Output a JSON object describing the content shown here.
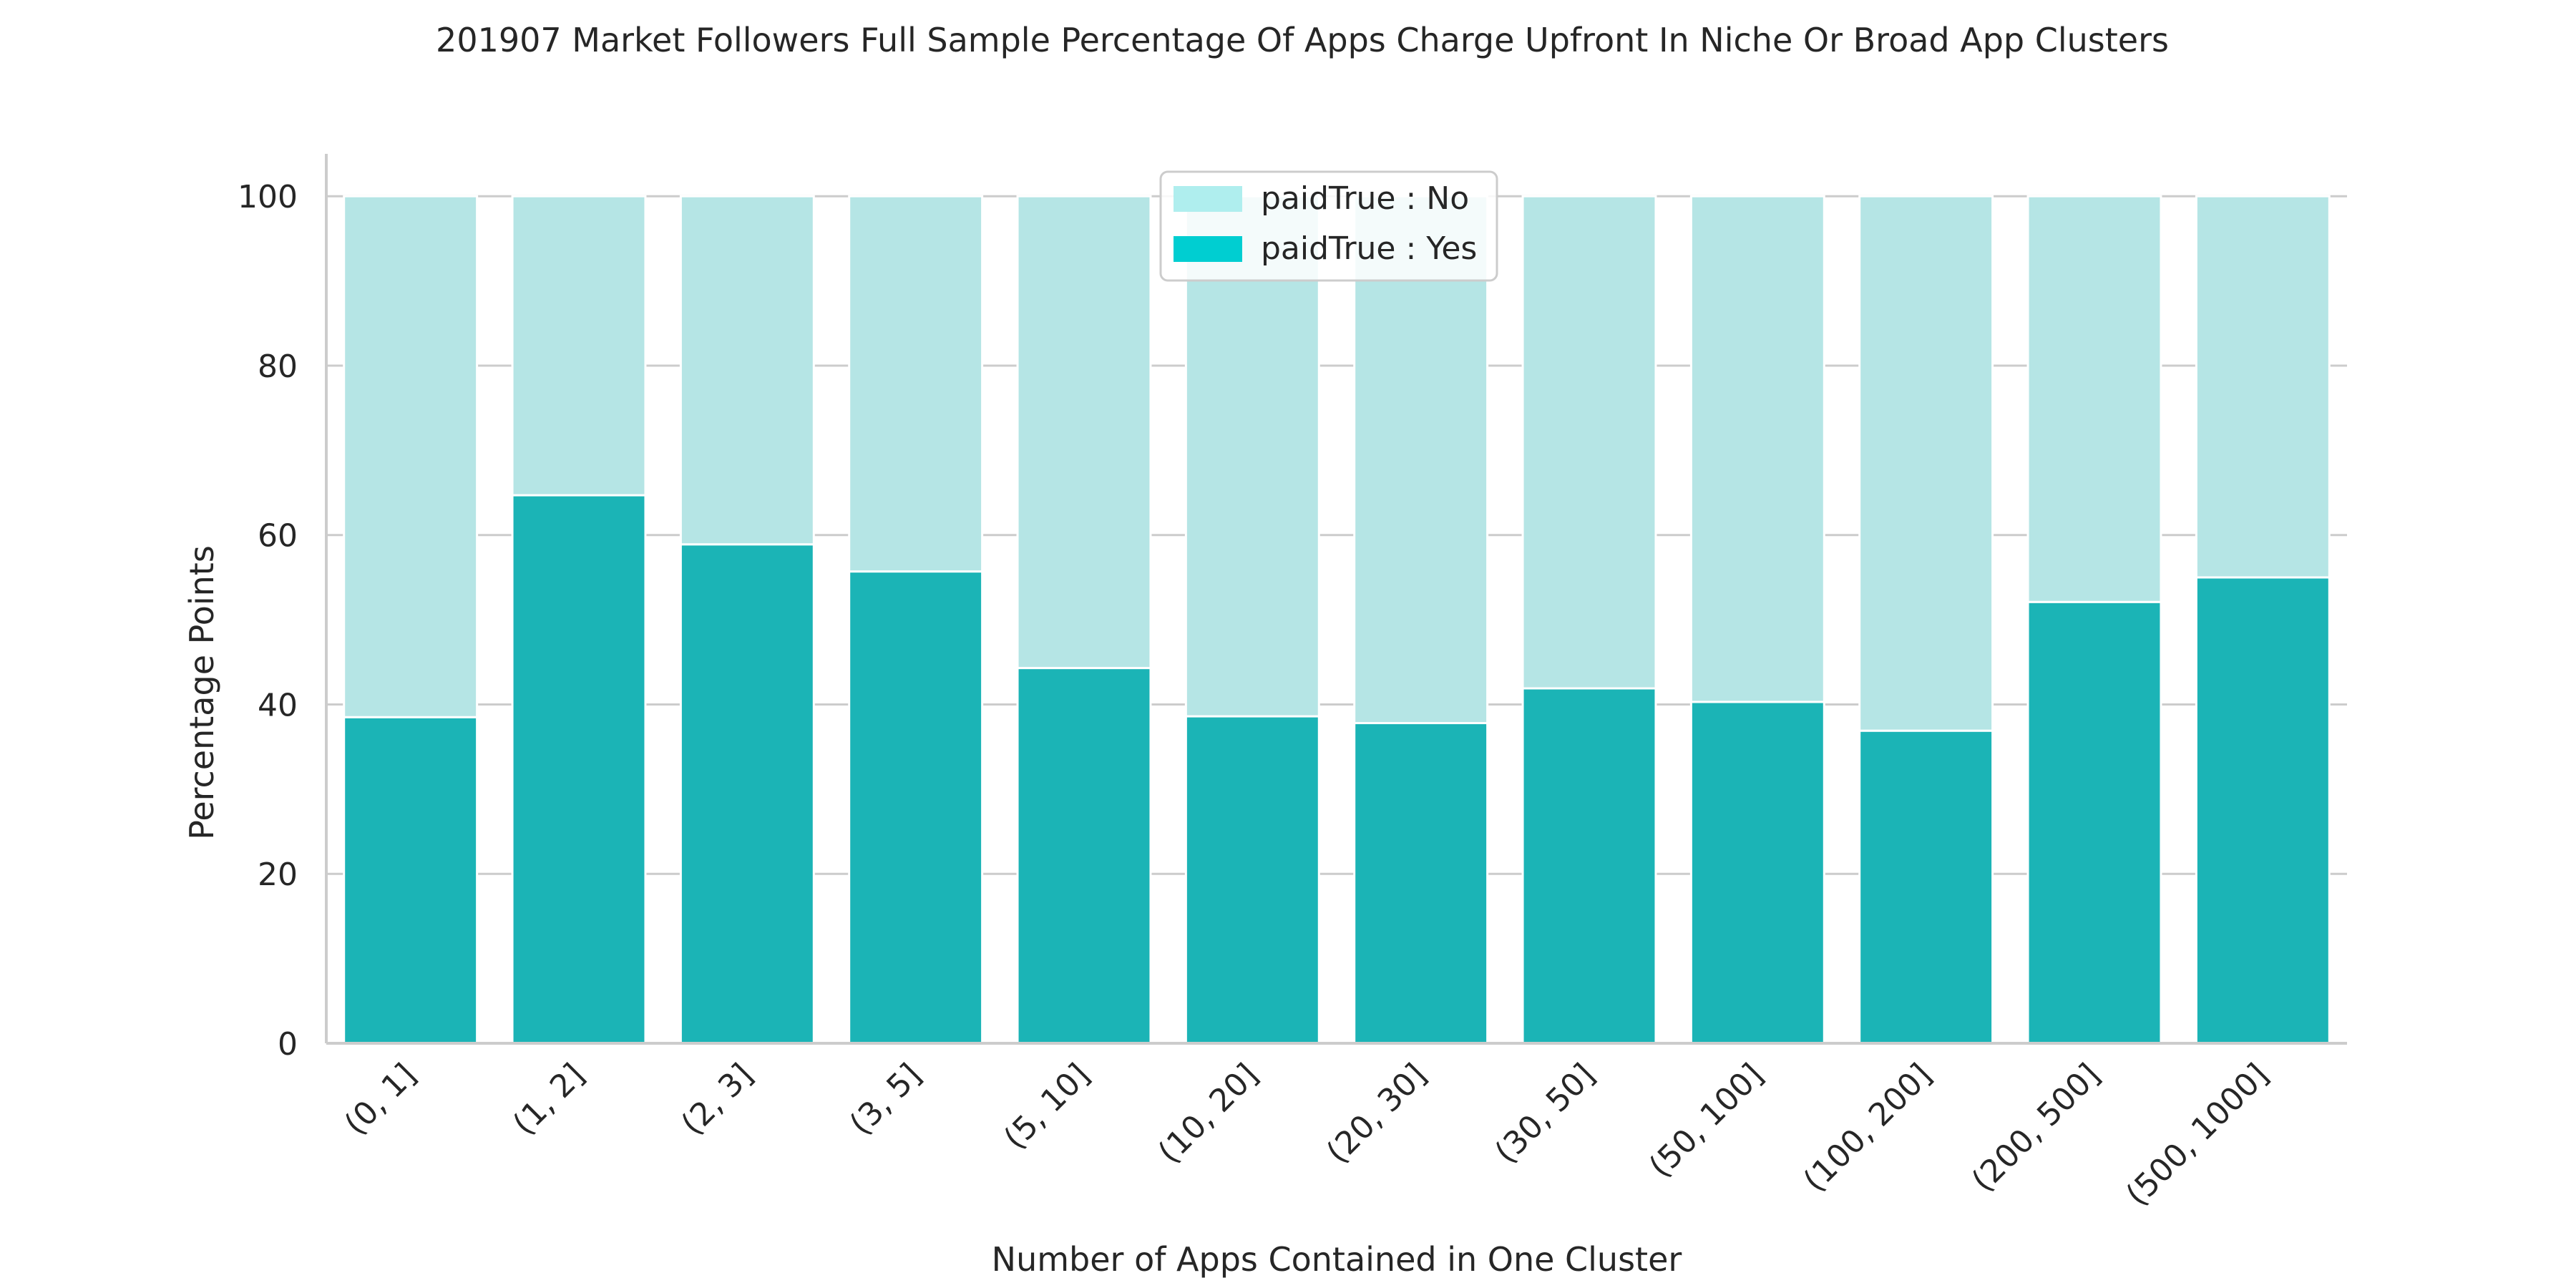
{
  "chart_data": {
    "type": "bar",
    "stacked": true,
    "title": "201907 Market Followers Full Sample Percentage Of Apps Charge Upfront In Niche Or Broad App Clusters",
    "xlabel": "Number of Apps Contained in One Cluster",
    "ylabel": "Percentage Points",
    "ylim": [
      0,
      105
    ],
    "yticks": [
      0,
      20,
      40,
      60,
      80,
      100
    ],
    "grid": true,
    "legend_position": "top-center",
    "categories": [
      "(0, 1]",
      "(1, 2]",
      "(2, 3]",
      "(3, 5]",
      "(5, 10]",
      "(10, 20]",
      "(20, 30]",
      "(30, 50]",
      "(50, 100]",
      "(100, 200]",
      "(200, 500]",
      "(500, 1000]"
    ],
    "series": [
      {
        "name": "paidTrue : Yes",
        "color": "#1bb4b6",
        "legend_color": "#00ced1",
        "values": [
          38.5,
          64.7,
          58.9,
          55.7,
          44.3,
          38.6,
          37.8,
          41.9,
          40.3,
          36.9,
          52.1,
          55.0
        ]
      },
      {
        "name": "paidTrue : No",
        "color": "#b5e5e5",
        "legend_color": "#afeeee",
        "values": [
          61.5,
          35.3,
          41.1,
          44.3,
          55.7,
          61.4,
          62.2,
          58.1,
          59.7,
          63.1,
          47.9,
          45.0
        ]
      }
    ]
  },
  "colors": {
    "grid": "#cccccc",
    "axis": "#cccccc",
    "legend_border": "#cccccc"
  }
}
